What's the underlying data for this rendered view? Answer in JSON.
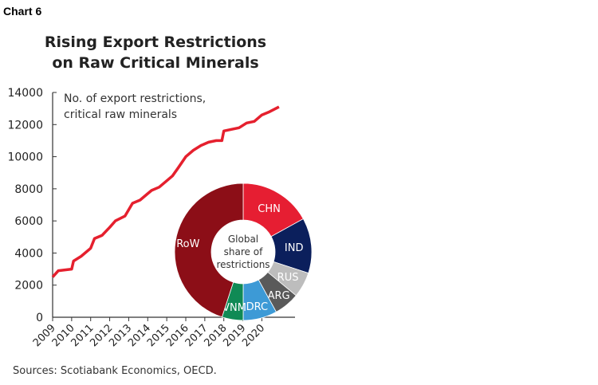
{
  "chart_label": "Chart 6",
  "source": "Sources: Scotiabank Economics, OECD.",
  "chart_data": [
    {
      "type": "line",
      "title": "Rising Export Restrictions on Raw Critical Minerals",
      "title_lines": [
        "Rising Export Restrictions",
        "on Raw Critical Minerals"
      ],
      "annotation_lines": [
        "No. of export restrictions,",
        "critical raw minerals"
      ],
      "xlabel": "",
      "ylabel": "",
      "ylim": [
        0,
        14000
      ],
      "xlim": [
        2009,
        2021
      ],
      "yticks": [
        0,
        2000,
        4000,
        6000,
        8000,
        10000,
        12000,
        14000
      ],
      "xticks": [
        "2009",
        "2010",
        "2011",
        "2012",
        "2013",
        "2014",
        "2015",
        "2016",
        "2017",
        "2018",
        "2019",
        "2020"
      ],
      "grid": false,
      "color": "#e5202e",
      "x": [
        2009.0,
        2009.3,
        2010.0,
        2010.1,
        2010.5,
        2011.0,
        2011.2,
        2011.6,
        2012.0,
        2012.3,
        2012.8,
        2013.2,
        2013.6,
        2014.0,
        2014.2,
        2014.6,
        2015.0,
        2015.3,
        2015.6,
        2016.0,
        2016.4,
        2016.8,
        2017.2,
        2017.6,
        2017.9,
        2018.0,
        2018.4,
        2018.8,
        2019.2,
        2019.6,
        2020.0,
        2020.4,
        2020.9
      ],
      "y": [
        2500,
        2900,
        3000,
        3500,
        3800,
        4300,
        4900,
        5100,
        5600,
        6000,
        6300,
        7100,
        7300,
        7700,
        7900,
        8100,
        8500,
        8800,
        9300,
        10000,
        10400,
        10700,
        10900,
        11000,
        11000,
        11600,
        11700,
        11800,
        12100,
        12200,
        12600,
        12800,
        13100
      ]
    },
    {
      "type": "pie",
      "subtype": "donut",
      "center_label_lines": [
        "Global",
        "share of",
        "restrictions"
      ],
      "categories": [
        "CHN",
        "IND",
        "RUS",
        "ARG",
        "DRC",
        "VNM",
        "RoW"
      ],
      "values": [
        17,
        13,
        6,
        6,
        8,
        5,
        45
      ],
      "colors": [
        "#e61e32",
        "#0b1f5c",
        "#bdbdbd",
        "#5a5a5a",
        "#3d9ad6",
        "#108a55",
        "#8c0e17"
      ]
    }
  ]
}
